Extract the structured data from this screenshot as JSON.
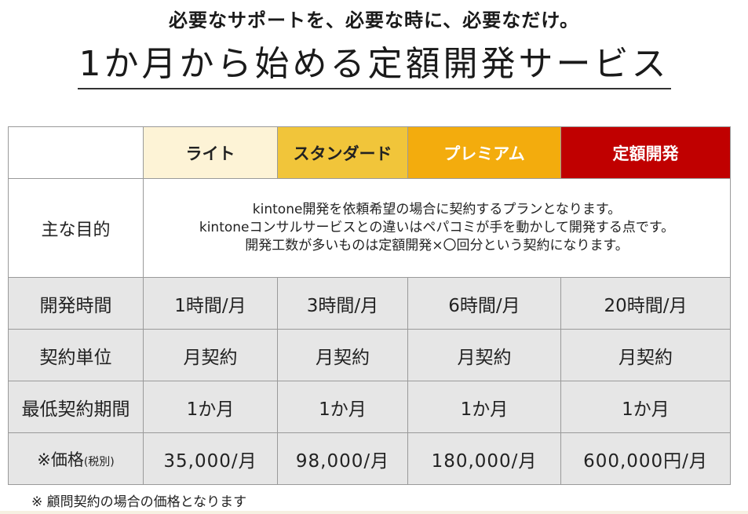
{
  "header": {
    "tagline": "必要なサポートを、必要な時に、必要なだけ。",
    "title": "1か月から始める定額開発サービス"
  },
  "plans": [
    {
      "name": "ライト",
      "color": "#fdf3d6",
      "text_color": "#222222"
    },
    {
      "name": "スタンダード",
      "color": "#f1c53a",
      "text_color": "#222222"
    },
    {
      "name": "プレミアム",
      "color": "#f3ac0d",
      "text_color": "#ffffff"
    },
    {
      "name": "定額開発",
      "color": "#c00000",
      "text_color": "#ffffff"
    }
  ],
  "purpose": {
    "label": "主な目的",
    "lines": [
      "kintone開発を依頼希望の場合に契約するプランとなります。",
      "kintoneコンサルサービスとの違いはペパコミが手を動かして開発する点です。",
      "開発工数が多いものは定額開発×〇回分という契約になります。"
    ]
  },
  "rows": [
    {
      "label": "開発時間",
      "values": [
        "1時間/月",
        "3時間/月",
        "6時間/月",
        "20時間/月"
      ]
    },
    {
      "label": "契約単位",
      "values": [
        "月契約",
        "月契約",
        "月契約",
        "月契約"
      ]
    },
    {
      "label": "最低契約期間",
      "values": [
        "1か月",
        "1か月",
        "1か月",
        "1か月"
      ]
    }
  ],
  "price": {
    "label_main": "※価格",
    "label_sub": "(税別)",
    "values": [
      "35,000/月",
      "98,000/月",
      "180,000/月",
      "600,000円/月"
    ]
  },
  "footnote": "※ 顧問契約の場合の価格となります"
}
